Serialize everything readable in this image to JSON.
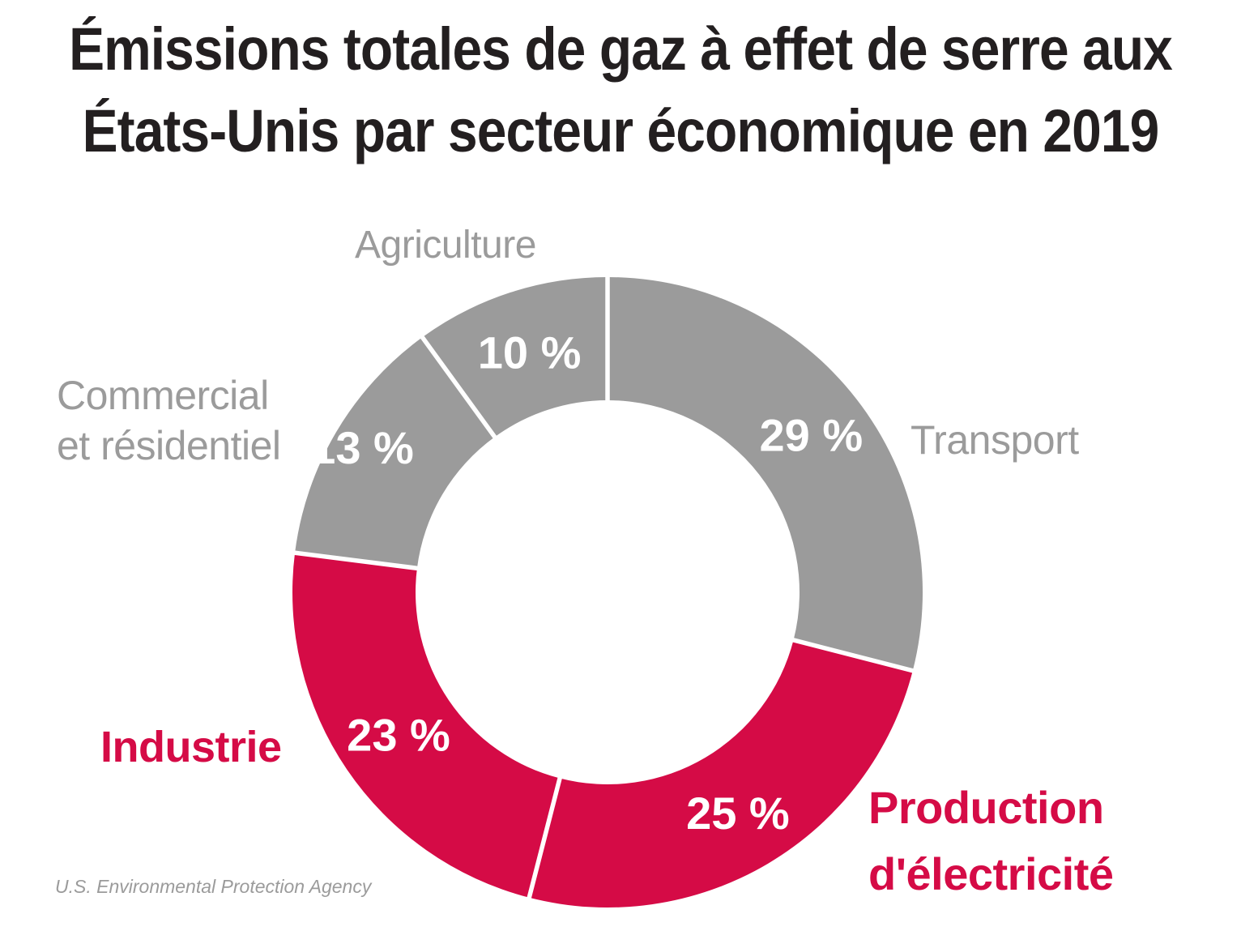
{
  "title": {
    "line1": "Émissions totales de gaz à effet de serre aux",
    "line2": "États-Unis par secteur économique en 2019"
  },
  "source": "U.S. Environmental Protection Agency",
  "colors": {
    "highlight": "#d50b46",
    "muted": "#9b9b9b",
    "title_text": "#231f20",
    "slice_value_text": "#ffffff",
    "background": "#ffffff"
  },
  "chart_data": {
    "type": "pie",
    "subtype": "donut",
    "title": "Émissions totales de gaz à effet de serre aux États-Unis par secteur économique en 2019",
    "unit": "%",
    "total": 100,
    "start_angle_deg": 0,
    "direction": "clockwise",
    "legend": "none",
    "series": [
      {
        "label": "Transport",
        "label_lines": [
          "Transport"
        ],
        "value": 29,
        "display": "29 %",
        "color": "#9b9b9b",
        "emphasis": false
      },
      {
        "label": "Production d'électricité",
        "label_lines": [
          "Production",
          "d'électricité"
        ],
        "value": 25,
        "display": "25 %",
        "color": "#d50b46",
        "emphasis": true
      },
      {
        "label": "Industrie",
        "label_lines": [
          "Industrie"
        ],
        "value": 23,
        "display": "23 %",
        "color": "#d50b46",
        "emphasis": true
      },
      {
        "label": "Commercial et résidentiel",
        "label_lines": [
          "Commercial",
          "et résidentiel"
        ],
        "value": 13,
        "display": "13 %",
        "color": "#9b9b9b",
        "emphasis": false
      },
      {
        "label": "Agriculture",
        "label_lines": [
          "Agriculture"
        ],
        "value": 10,
        "display": "10 %",
        "color": "#9b9b9b",
        "emphasis": false
      }
    ]
  }
}
